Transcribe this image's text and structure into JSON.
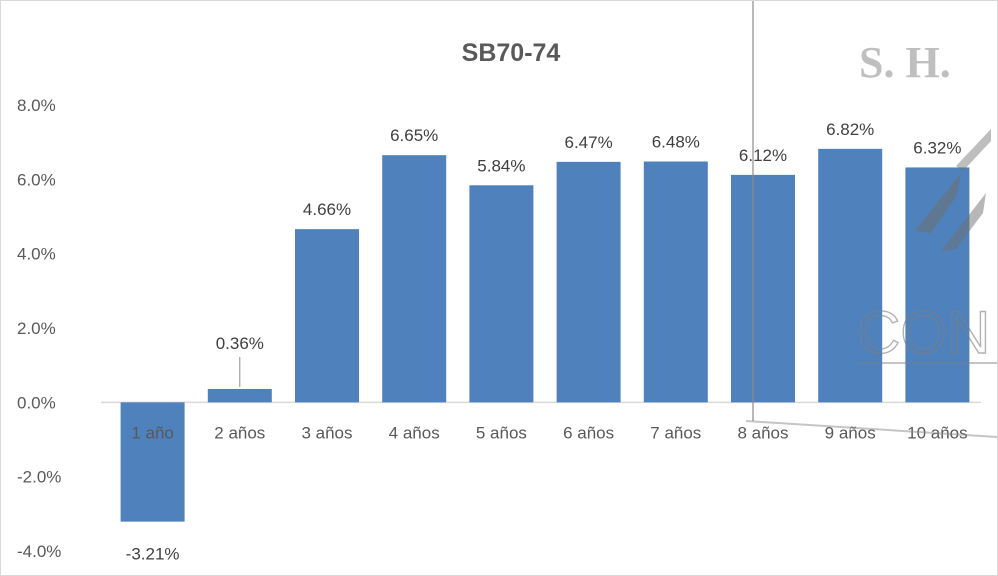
{
  "chart_data": {
    "type": "bar",
    "title": "SB70-74",
    "xlabel": "",
    "ylabel": "",
    "categories": [
      "1 año",
      "2 años",
      "3 años",
      "4 años",
      "5 años",
      "6 años",
      "7 años",
      "8 años",
      "9 años",
      "10 años"
    ],
    "values": [
      -3.21,
      0.36,
      4.66,
      6.65,
      5.84,
      6.47,
      6.48,
      6.12,
      6.82,
      6.32
    ],
    "value_labels": [
      "-3.21%",
      "0.36%",
      "4.66%",
      "6.65%",
      "5.84%",
      "6.47%",
      "6.48%",
      "6.12%",
      "6.82%",
      "6.32%"
    ],
    "ylim": [
      -4,
      8
    ],
    "y_ticks": [
      8,
      6,
      4,
      2,
      0,
      -2,
      -4
    ],
    "y_tick_labels": [
      "8.0%",
      "6.0%",
      "4.0%",
      "2.0%",
      "0.0%",
      "-2.0%",
      "-4.0%"
    ],
    "grid": false,
    "legend": "none",
    "bar_color": "#4f81bd"
  },
  "watermark": {
    "text": "S. H.",
    "logo_text": "CON"
  }
}
